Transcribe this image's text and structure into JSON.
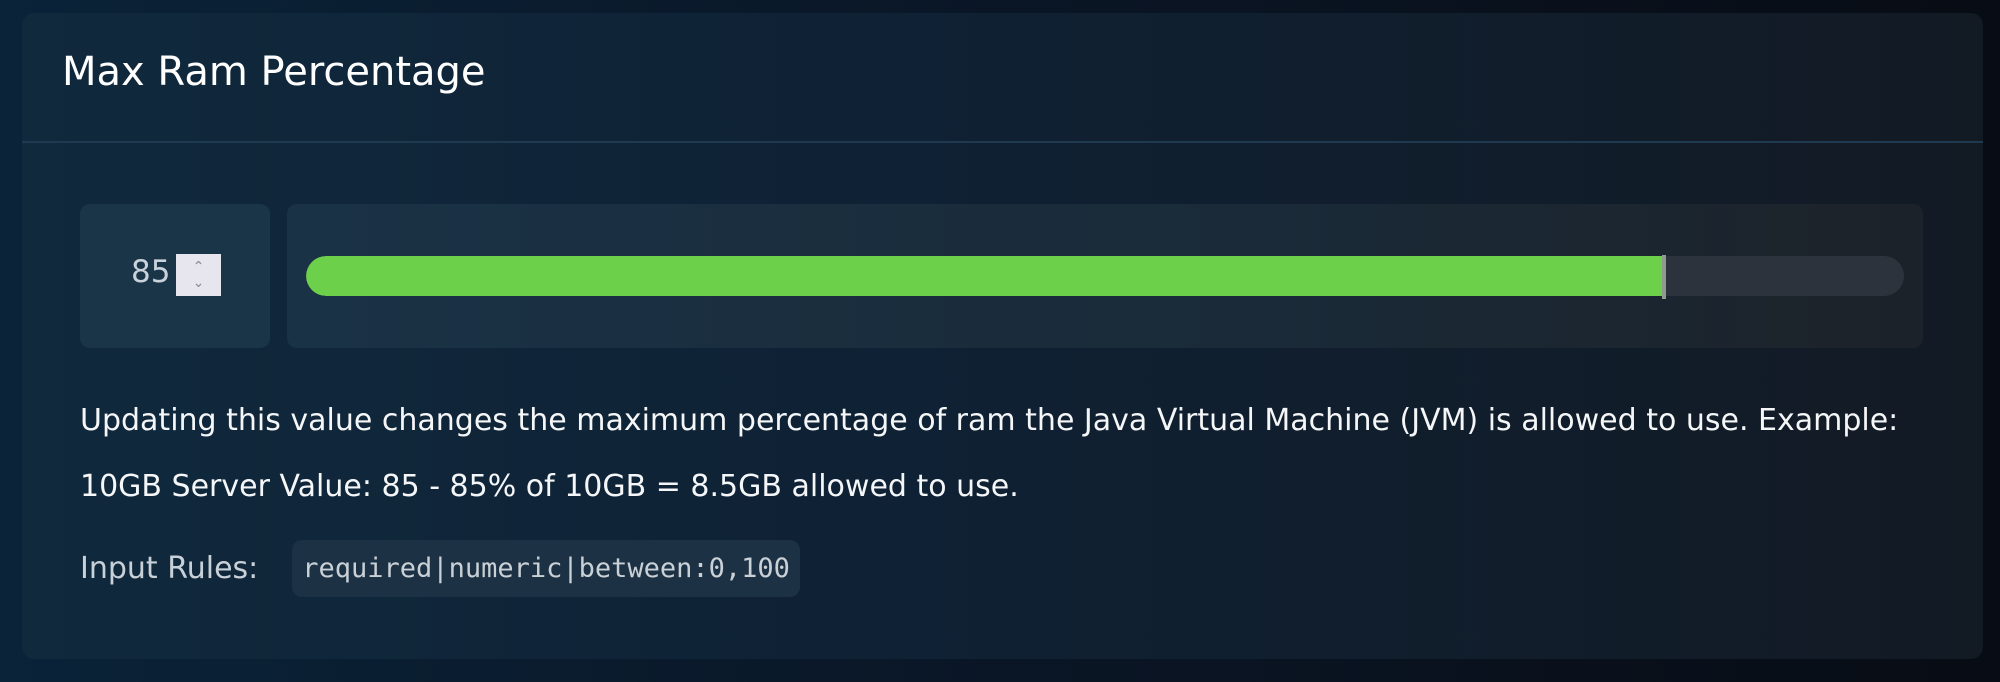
{
  "card": {
    "title": "Max Ram Percentage",
    "input": {
      "value": "85",
      "spinner_up": "⌃",
      "spinner_down": "⌄"
    },
    "slider": {
      "value": 85,
      "min": 0,
      "max": 100,
      "fill_color": "#6cd04a",
      "track_color": "#2d333d"
    },
    "description": "Updating this value changes the maximum percentage of ram the Java Virtual Machine (JVM) is allowed to use. Example: 10GB Server Value: 85 - 85% of 10GB = 8.5GB allowed to use.",
    "rules_label": "Input Rules:",
    "rules_value": "required|numeric|between:0,100"
  }
}
